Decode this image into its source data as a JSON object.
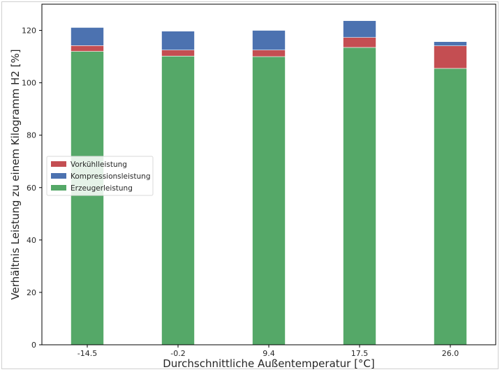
{
  "chart_data": {
    "type": "bar",
    "stacked": true,
    "categories": [
      "-14.5",
      "-0.2",
      "9.4",
      "17.5",
      "26.0"
    ],
    "series": [
      {
        "name": "Erzeugerleistung",
        "values": [
          112.0,
          110.2,
          110.0,
          113.5,
          105.5
        ],
        "color": "#55a868"
      },
      {
        "name": "Vorkühlleistung",
        "values": [
          2.2,
          2.3,
          2.5,
          3.8,
          8.6
        ],
        "color": "#c44e52"
      },
      {
        "name": "Kompressionsleistung",
        "values": [
          6.9,
          7.2,
          7.5,
          6.4,
          1.6
        ],
        "color": "#4c72b0"
      }
    ],
    "legend_order": [
      "Vorkühlleistung",
      "Kompressionsleistung",
      "Erzeugerleistung"
    ],
    "xlabel": "Durchschnittliche Außentemperatur [°C]",
    "ylabel": "Verhältnis Leistung zu einem Kilogramm H2 [%]",
    "ylim": [
      0,
      130
    ],
    "yticks": [
      0,
      20,
      40,
      60,
      80,
      100,
      120
    ],
    "grid": false,
    "legend_position": "center-left"
  }
}
